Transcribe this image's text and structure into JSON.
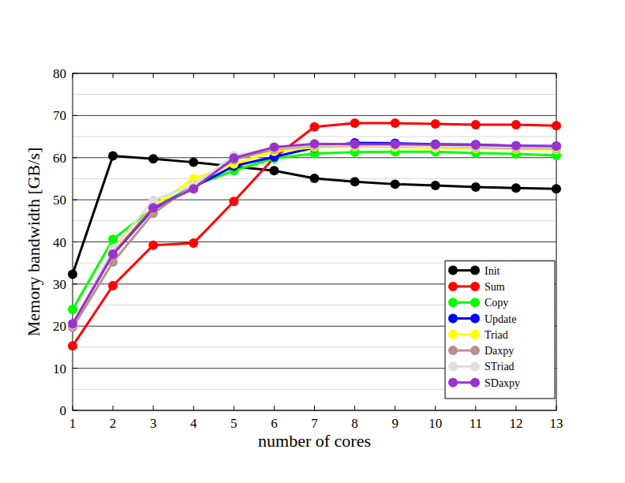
{
  "chart_data": {
    "type": "line",
    "x_label": "number of cores",
    "y_label": "Memory bandwidth [GB/s]",
    "x": [
      1,
      2,
      3,
      4,
      5,
      6,
      7,
      8,
      9,
      10,
      11,
      12,
      13
    ],
    "xlim": [
      1,
      13
    ],
    "xticks": [
      1,
      2,
      3,
      4,
      5,
      6,
      7,
      8,
      9,
      10,
      11,
      12,
      13
    ],
    "ylim": [
      0,
      80
    ],
    "yticks": [
      0,
      10,
      20,
      30,
      40,
      50,
      60,
      70,
      80
    ],
    "grid": true,
    "legend": "lower right",
    "marker": "circle",
    "series": [
      {
        "name": "Init",
        "color": "#000000",
        "values": [
          32.3,
          60.4,
          59.7,
          58.9,
          57.9,
          56.9,
          55.1,
          54.3,
          53.7,
          53.4,
          53.0,
          52.8,
          52.6
        ]
      },
      {
        "name": "Sum",
        "color": "#ff0000",
        "values": [
          15.3,
          29.6,
          39.2,
          39.7,
          49.6,
          60.0,
          67.3,
          68.2,
          68.2,
          68.0,
          67.8,
          67.8,
          67.6
        ]
      },
      {
        "name": "Copy",
        "color": "#00ff00",
        "values": [
          24.0,
          40.6,
          48.0,
          53.3,
          56.9,
          59.8,
          61.0,
          61.3,
          61.4,
          61.4,
          61.1,
          60.9,
          60.5
        ]
      },
      {
        "name": "Update",
        "color": "#0000ff",
        "values": [
          20.5,
          37.0,
          47.8,
          53.0,
          58.0,
          60.2,
          62.4,
          63.5,
          63.4,
          63.2,
          63.1,
          62.8,
          62.7
        ]
      },
      {
        "name": "Triad",
        "color": "#ffff00",
        "values": [
          20.0,
          37.5,
          48.5,
          55.0,
          58.5,
          61.5,
          62.5,
          62.6,
          62.5,
          62.3,
          62.2,
          62.0,
          61.9
        ]
      },
      {
        "name": "Daxpy",
        "color": "#bc8f8f",
        "values": [
          19.7,
          35.2,
          46.8,
          53.5,
          59.5,
          62.0,
          62.8,
          62.8,
          62.8,
          62.6,
          62.5,
          62.3,
          62.2
        ]
      },
      {
        "name": "STriad",
        "color": "#dddddd",
        "values": [
          20.3,
          38.3,
          49.9,
          53.5,
          60.5,
          62.3,
          63.0,
          62.9,
          62.8,
          62.6,
          62.6,
          62.5,
          62.4
        ]
      },
      {
        "name": "SDaxpy",
        "color": "#9933cc",
        "values": [
          20.5,
          37.1,
          48.1,
          52.6,
          59.9,
          62.5,
          63.3,
          63.2,
          63.2,
          63.1,
          63.0,
          62.8,
          62.7
        ]
      }
    ]
  }
}
